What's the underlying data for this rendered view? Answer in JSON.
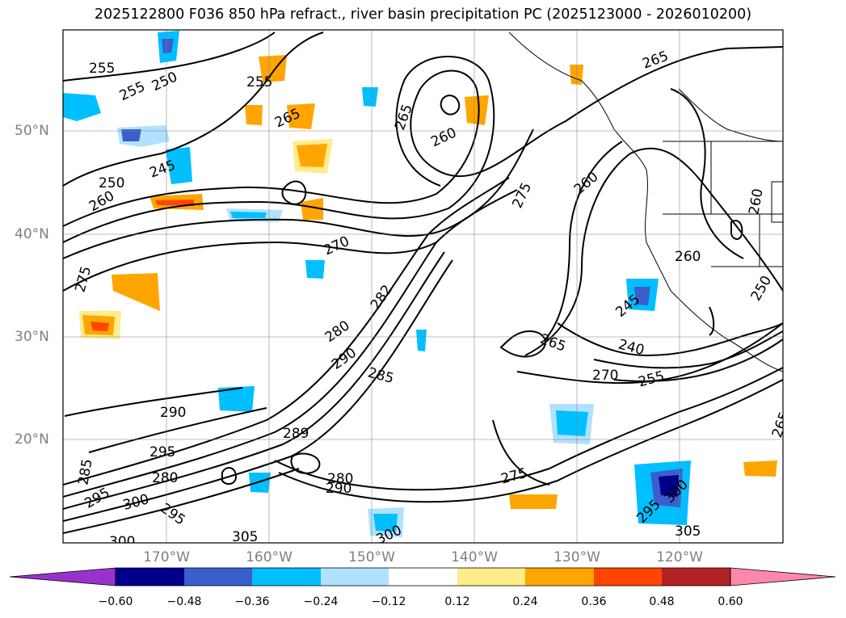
{
  "title": "2025122800 F036 850 hPa refract., river basin precipitation PC (2025123000 - 2026010200)",
  "lat_labels": [
    "50°N",
    "40°N",
    "30°N",
    "20°N"
  ],
  "lon_labels": [
    "170°W",
    "160°W",
    "150°W",
    "140°W",
    "130°W",
    "120°W"
  ],
  "contour_labels": [
    "255",
    "255",
    "250",
    "255",
    "265",
    "265",
    "265",
    "260",
    "245",
    "250",
    "260",
    "270",
    "275",
    "260",
    "260",
    "275",
    "260",
    "245",
    "250",
    "282",
    "280",
    "290",
    "285",
    "265",
    "240",
    "270",
    "255",
    "290",
    "289",
    "295",
    "280",
    "280",
    "285",
    "300",
    "295",
    "290",
    "295",
    "300",
    "275",
    "295",
    "300",
    "305",
    "305",
    "265",
    "300"
  ],
  "colorbar": {
    "ticks": [
      "−0.60",
      "−0.48",
      "−0.36",
      "−0.24",
      "−0.12",
      "0.12",
      "0.24",
      "0.36",
      "0.48",
      "0.60"
    ],
    "colors": [
      "#9932cc",
      "#00008b",
      "#3a5fcd",
      "#00bfff",
      "#b0e2ff",
      "#ffffff",
      "#ffec8b",
      "#ffa500",
      "#ff4500",
      "#b22222",
      "#ff88aa"
    ]
  }
}
